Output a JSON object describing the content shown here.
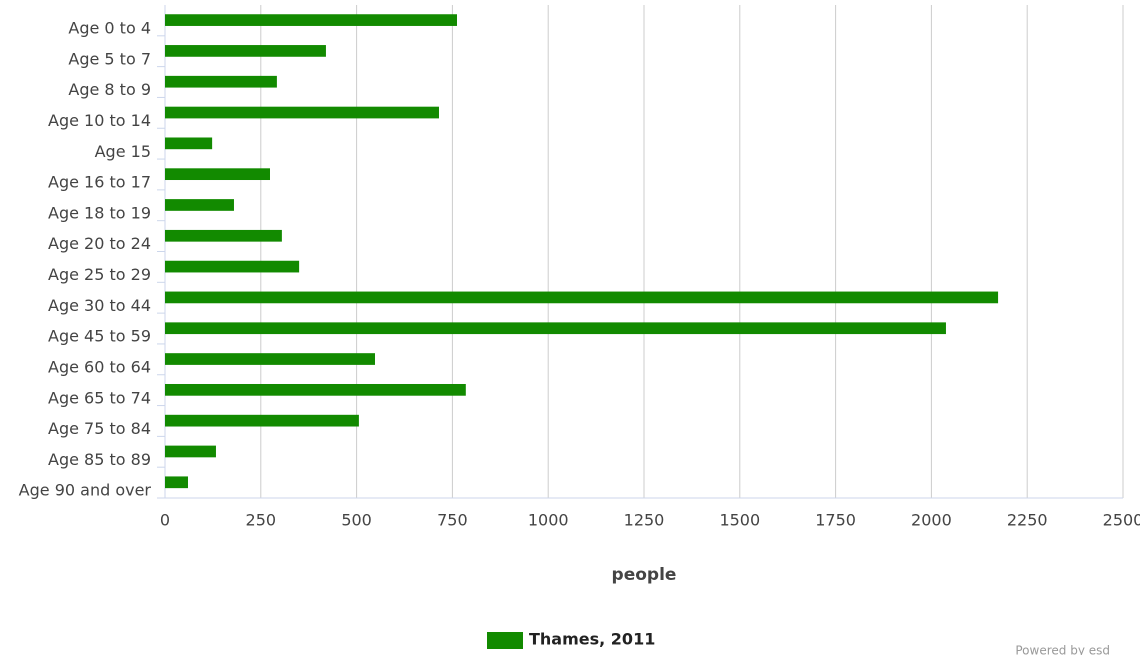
{
  "chart_data": {
    "type": "bar",
    "orientation": "horizontal",
    "categories": [
      "Age 0 to 4",
      "Age 5 to 7",
      "Age 8 to 9",
      "Age 10 to 14",
      "Age 15",
      "Age 16 to 17",
      "Age 18 to 19",
      "Age 20 to 24",
      "Age 25 to 29",
      "Age 30 to 44",
      "Age 45 to 59",
      "Age 60 to 64",
      "Age 65 to 74",
      "Age 75 to 84",
      "Age 85 to 89",
      "Age 90 and over"
    ],
    "series": [
      {
        "name": "Thames, 2011",
        "color": "#128a00",
        "values": [
          762,
          420,
          292,
          715,
          123,
          274,
          180,
          305,
          350,
          2174,
          2038,
          548,
          785,
          506,
          133,
          60
        ]
      }
    ],
    "xlabel": "people",
    "xlim": [
      0,
      2500
    ],
    "xticks": [
      0,
      250,
      500,
      750,
      1000,
      1250,
      1500,
      1750,
      2000,
      2250,
      2500
    ],
    "grid": true,
    "legend": "bottom",
    "credit": "Powered by esd"
  }
}
